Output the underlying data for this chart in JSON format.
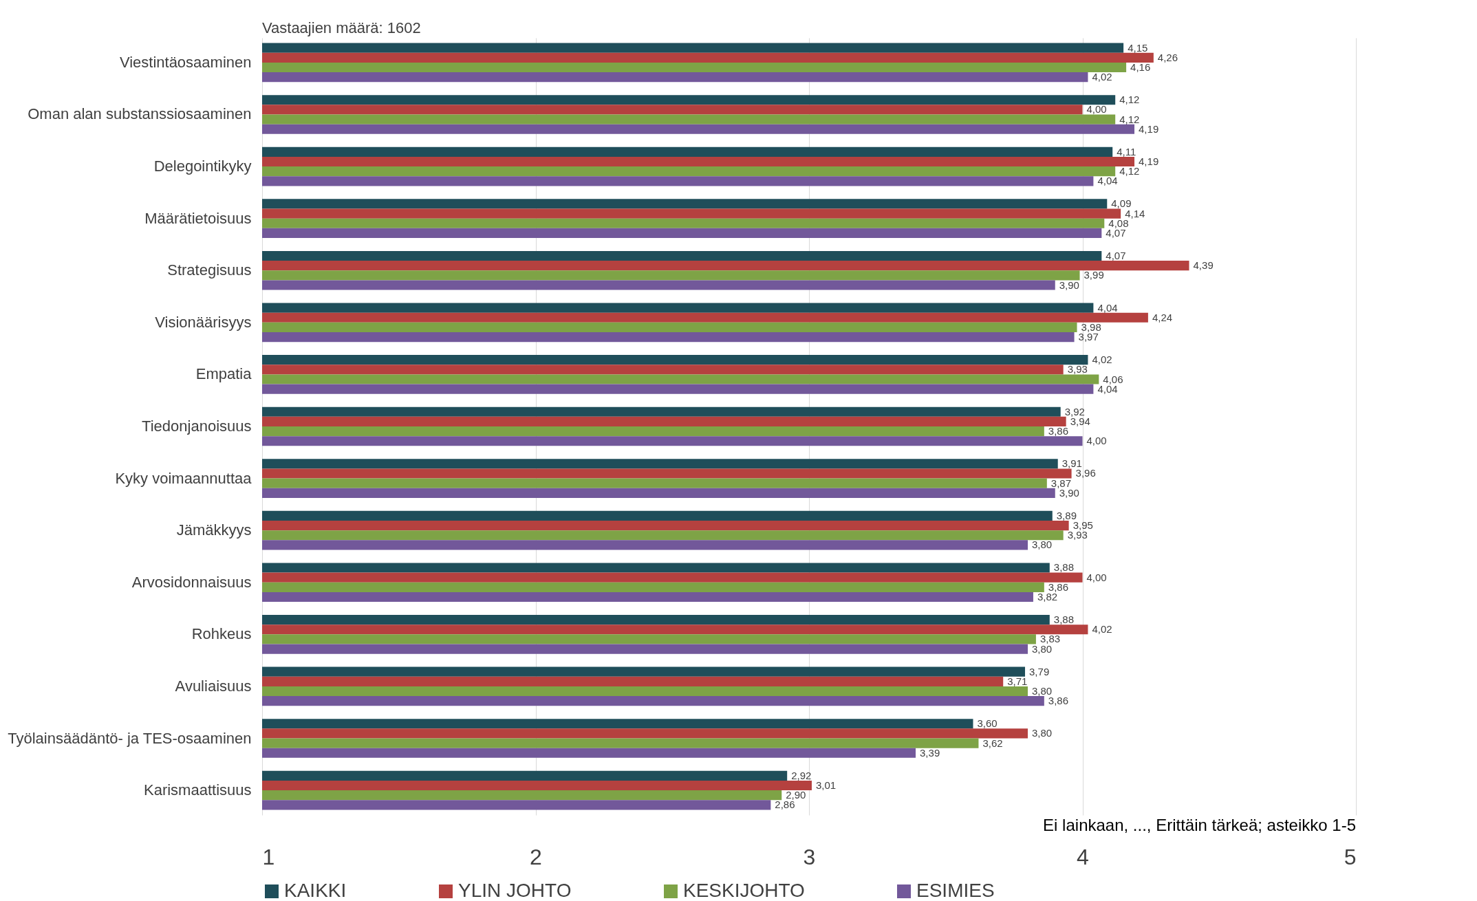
{
  "chart_data": {
    "type": "bar",
    "orientation": "horizontal",
    "annotations": [
      "Vastaajien määrä: 1602",
      "Ei lainkaan, ..., Erittäin tärkeä; asteikko 1-5"
    ],
    "categories": [
      "Viestintäosaaminen",
      "Oman alan substanssiosaaminen",
      "Delegointikyky",
      "Määrätietoisuus",
      "Strategisuus",
      "Visionäärisyys",
      "Empatia",
      "Tiedonjanoisuus",
      "Kyky voimaannuttaa",
      "Jämäkkyys",
      "Arvosidonnaisuus",
      "Rohkeus",
      "Avuliaisuus",
      "Työlainsäädäntö- ja TES-osaaminen",
      "Karismaattisuus"
    ],
    "series": [
      {
        "name": "KAIKKI",
        "color": "#1f4e5a",
        "values": [
          4.15,
          4.12,
          4.11,
          4.09,
          4.07,
          4.04,
          4.02,
          3.92,
          3.91,
          3.89,
          3.88,
          3.88,
          3.79,
          3.6,
          2.92
        ],
        "value_labels": [
          "4,15",
          "4,12",
          "4,11",
          "4,09",
          "4,07",
          "4,04",
          "4,02",
          "3,92",
          "3,91",
          "3,89",
          "3,88",
          "3,88",
          "3,79",
          "3,60",
          "2,92"
        ]
      },
      {
        "name": "YLIN JOHTO",
        "color": "#b5413f",
        "values": [
          4.26,
          4.0,
          4.19,
          4.14,
          4.39,
          4.24,
          3.93,
          3.94,
          3.96,
          3.95,
          4.0,
          4.02,
          3.71,
          3.8,
          3.01
        ],
        "value_labels": [
          "4,26",
          "4,00",
          "4,19",
          "4,14",
          "4,39",
          "4,24",
          "3,93",
          "3,94",
          "3,96",
          "3,95",
          "4,00",
          "4,02",
          "3,71",
          "3,80",
          "3,01"
        ]
      },
      {
        "name": "KESKIJOHTO",
        "color": "#7ea346",
        "values": [
          4.16,
          4.12,
          4.12,
          4.08,
          3.99,
          3.98,
          4.06,
          3.86,
          3.87,
          3.93,
          3.86,
          3.83,
          3.8,
          3.62,
          2.9
        ],
        "value_labels": [
          "4,16",
          "4,12",
          "4,12",
          "4,08",
          "3,99",
          "3,98",
          "4,06",
          "3,86",
          "3,87",
          "3,93",
          "3,86",
          "3,83",
          "3,80",
          "3,62",
          "2,90"
        ]
      },
      {
        "name": "ESIMIES",
        "color": "#72589a",
        "values": [
          4.02,
          4.19,
          4.04,
          4.07,
          3.9,
          3.97,
          4.04,
          4.0,
          3.9,
          3.8,
          3.82,
          3.8,
          3.86,
          3.39,
          2.86
        ],
        "value_labels": [
          "4,02",
          "4,19",
          "4,04",
          "4,07",
          "3,90",
          "3,97",
          "4,04",
          "4,00",
          "3,90",
          "3,80",
          "3,82",
          "3,80",
          "3,86",
          "3,39",
          "2,86"
        ]
      }
    ],
    "xlim": [
      1,
      5
    ],
    "xticks": [
      1,
      2,
      3,
      4,
      5
    ],
    "grid": "x",
    "legend": "bottom"
  }
}
